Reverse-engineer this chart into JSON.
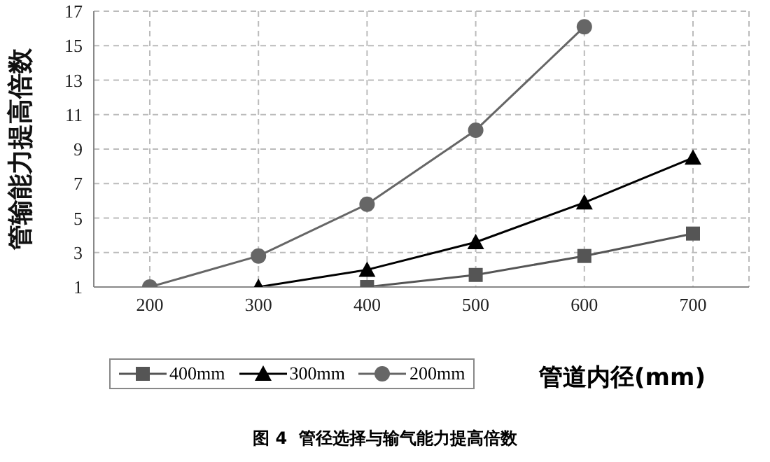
{
  "chart_data": {
    "type": "line",
    "title": "图 4  管径选择与输气能力提高倍数",
    "xlabel": "管道内径(mm)",
    "ylabel": "管输能力提高倍数",
    "categories": [
      "200",
      "300",
      "400",
      "500",
      "600",
      "700"
    ],
    "series": [
      {
        "name": "400mm",
        "color": "#555555",
        "marker": "square",
        "values": [
          null,
          null,
          1,
          1.7,
          2.8,
          4.1
        ]
      },
      {
        "name": "300mm",
        "color": "#000000",
        "marker": "triangle",
        "values": [
          null,
          1,
          2,
          3.6,
          5.9,
          8.5
        ]
      },
      {
        "name": "200mm",
        "color": "#666666",
        "marker": "circle",
        "values": [
          1,
          2.8,
          5.8,
          10.1,
          16.1,
          null
        ]
      }
    ],
    "ylim": [
      1,
      17
    ],
    "yticks": [
      1,
      3,
      5,
      7,
      9,
      11,
      13,
      15,
      17
    ],
    "grid": true,
    "legend": "bottom left",
    "line_style": "solid"
  }
}
